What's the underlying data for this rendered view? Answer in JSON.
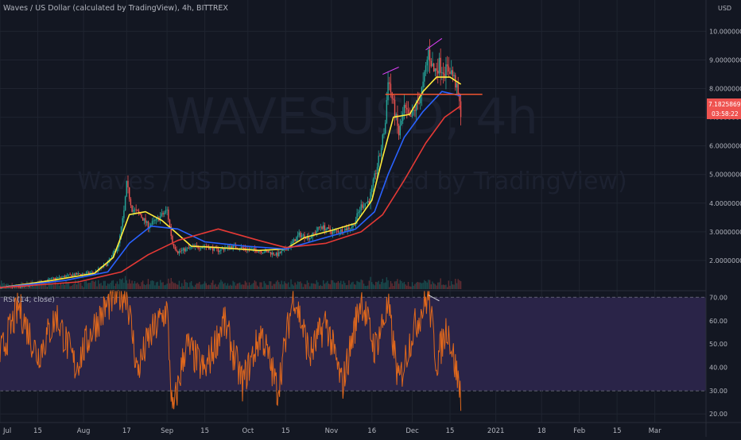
{
  "header": {
    "title": "Waves / US Dollar (calculated by TradingView), 4h, BITTREX",
    "currency": "USD"
  },
  "watermark": {
    "symbol": "WAVESUSD, 4h",
    "description": "Waves / US Dollar (calculated by TradingView)"
  },
  "colors": {
    "background": "#131722",
    "grid": "#1f2430",
    "axis_text": "#b2b5be",
    "candle_up": "#26a69a",
    "candle_down": "#ef5350",
    "ma_fast": "#ffeb3b",
    "ma_mid": "#2962ff",
    "ma_slow": "#e53935",
    "rsi_line": "#e0681c",
    "rsi_band": "#2a2448",
    "level_line": "#f0532f",
    "trend_line": "#e040fb"
  },
  "price_badge": {
    "value": "7.18258695",
    "countdown": "03:58:22"
  },
  "rsi_panel": {
    "label": "RSI (14, close)"
  },
  "chart_data": [
    {
      "type": "candlestick",
      "name": "price",
      "x_axis": {
        "tick_labels": [
          "Jul",
          "15",
          "Aug",
          "17",
          "Sep",
          "15",
          "Oct",
          "15",
          "Nov",
          "16",
          "Dec",
          "15",
          "2021",
          "18",
          "Feb",
          "15",
          "Mar"
        ],
        "range": [
          "2020-07-01",
          "2021-03-20"
        ]
      },
      "y_axis": {
        "tick_labels": [
          "10.00000000",
          "9.00000000",
          "8.00000000",
          "7.00000000",
          "6.00000000",
          "5.00000000",
          "4.00000000",
          "3.00000000",
          "2.00000000"
        ],
        "ticks": [
          10,
          9,
          8,
          7,
          6,
          5,
          4,
          3,
          2
        ],
        "range": [
          1.0,
          10.4
        ]
      },
      "close_path": [
        {
          "x": "2020-07-01",
          "y": 1.05
        },
        {
          "x": "2020-07-10",
          "y": 1.08
        },
        {
          "x": "2020-07-20",
          "y": 1.35
        },
        {
          "x": "2020-07-28",
          "y": 1.5
        },
        {
          "x": "2020-08-05",
          "y": 1.58
        },
        {
          "x": "2020-08-10",
          "y": 1.9
        },
        {
          "x": "2020-08-14",
          "y": 2.55
        },
        {
          "x": "2020-08-16",
          "y": 3.7
        },
        {
          "x": "2020-08-17",
          "y": 4.65
        },
        {
          "x": "2020-08-19",
          "y": 3.8
        },
        {
          "x": "2020-08-22",
          "y": 3.6
        },
        {
          "x": "2020-08-25",
          "y": 3.2
        },
        {
          "x": "2020-08-28",
          "y": 3.4
        },
        {
          "x": "2020-09-01",
          "y": 3.75
        },
        {
          "x": "2020-09-03",
          "y": 2.6
        },
        {
          "x": "2020-09-05",
          "y": 2.3
        },
        {
          "x": "2020-09-10",
          "y": 2.45
        },
        {
          "x": "2020-09-15",
          "y": 2.5
        },
        {
          "x": "2020-09-20",
          "y": 2.35
        },
        {
          "x": "2020-09-25",
          "y": 2.5
        },
        {
          "x": "2020-10-01",
          "y": 2.4
        },
        {
          "x": "2020-10-08",
          "y": 2.3
        },
        {
          "x": "2020-10-12",
          "y": 2.2
        },
        {
          "x": "2020-10-16",
          "y": 2.45
        },
        {
          "x": "2020-10-20",
          "y": 2.9
        },
        {
          "x": "2020-10-24",
          "y": 2.8
        },
        {
          "x": "2020-10-28",
          "y": 3.2
        },
        {
          "x": "2020-11-01",
          "y": 3.0
        },
        {
          "x": "2020-11-05",
          "y": 3.05
        },
        {
          "x": "2020-11-09",
          "y": 3.2
        },
        {
          "x": "2020-11-12",
          "y": 3.9
        },
        {
          "x": "2020-11-15",
          "y": 4.1
        },
        {
          "x": "2020-11-17",
          "y": 4.9
        },
        {
          "x": "2020-11-19",
          "y": 5.7
        },
        {
          "x": "2020-11-21",
          "y": 6.8
        },
        {
          "x": "2020-11-22",
          "y": 8.4
        },
        {
          "x": "2020-11-24",
          "y": 7.4
        },
        {
          "x": "2020-11-26",
          "y": 6.4
        },
        {
          "x": "2020-11-28",
          "y": 7.3
        },
        {
          "x": "2020-11-30",
          "y": 6.9
        },
        {
          "x": "2020-12-03",
          "y": 7.5
        },
        {
          "x": "2020-12-05",
          "y": 8.1
        },
        {
          "x": "2020-12-07",
          "y": 9.3
        },
        {
          "x": "2020-12-09",
          "y": 8.6
        },
        {
          "x": "2020-12-11",
          "y": 8.85
        },
        {
          "x": "2020-12-13",
          "y": 8.6
        },
        {
          "x": "2020-12-15",
          "y": 8.7
        },
        {
          "x": "2020-12-17",
          "y": 8.2
        },
        {
          "x": "2020-12-19",
          "y": 7.18
        }
      ],
      "moving_averages": [
        {
          "color_key": "ma_fast",
          "points": [
            {
              "x": "2020-07-01",
              "y": 1.05
            },
            {
              "x": "2020-07-20",
              "y": 1.3
            },
            {
              "x": "2020-08-05",
              "y": 1.55
            },
            {
              "x": "2020-08-12",
              "y": 2.1
            },
            {
              "x": "2020-08-18",
              "y": 3.6
            },
            {
              "x": "2020-08-24",
              "y": 3.7
            },
            {
              "x": "2020-08-30",
              "y": 3.4
            },
            {
              "x": "2020-09-04",
              "y": 3.0
            },
            {
              "x": "2020-09-10",
              "y": 2.5
            },
            {
              "x": "2020-09-20",
              "y": 2.45
            },
            {
              "x": "2020-10-05",
              "y": 2.35
            },
            {
              "x": "2020-10-15",
              "y": 2.4
            },
            {
              "x": "2020-10-22",
              "y": 2.8
            },
            {
              "x": "2020-11-01",
              "y": 3.05
            },
            {
              "x": "2020-11-10",
              "y": 3.3
            },
            {
              "x": "2020-11-16",
              "y": 4.1
            },
            {
              "x": "2020-11-20",
              "y": 5.6
            },
            {
              "x": "2020-11-24",
              "y": 7.0
            },
            {
              "x": "2020-11-30",
              "y": 7.1
            },
            {
              "x": "2020-12-05",
              "y": 7.9
            },
            {
              "x": "2020-12-10",
              "y": 8.4
            },
            {
              "x": "2020-12-15",
              "y": 8.4
            },
            {
              "x": "2020-12-19",
              "y": 8.15
            }
          ]
        },
        {
          "color_key": "ma_mid",
          "points": [
            {
              "x": "2020-07-01",
              "y": 1.05
            },
            {
              "x": "2020-07-25",
              "y": 1.3
            },
            {
              "x": "2020-08-10",
              "y": 1.6
            },
            {
              "x": "2020-08-18",
              "y": 2.6
            },
            {
              "x": "2020-08-26",
              "y": 3.2
            },
            {
              "x": "2020-09-05",
              "y": 3.1
            },
            {
              "x": "2020-09-15",
              "y": 2.65
            },
            {
              "x": "2020-09-30",
              "y": 2.5
            },
            {
              "x": "2020-10-15",
              "y": 2.4
            },
            {
              "x": "2020-10-28",
              "y": 2.75
            },
            {
              "x": "2020-11-10",
              "y": 3.1
            },
            {
              "x": "2020-11-17",
              "y": 3.7
            },
            {
              "x": "2020-11-22",
              "y": 5.0
            },
            {
              "x": "2020-11-28",
              "y": 6.3
            },
            {
              "x": "2020-12-05",
              "y": 7.2
            },
            {
              "x": "2020-12-12",
              "y": 7.9
            },
            {
              "x": "2020-12-19",
              "y": 7.75
            }
          ]
        },
        {
          "color_key": "ma_slow",
          "points": [
            {
              "x": "2020-07-01",
              "y": 1.05
            },
            {
              "x": "2020-07-30",
              "y": 1.25
            },
            {
              "x": "2020-08-15",
              "y": 1.6
            },
            {
              "x": "2020-08-25",
              "y": 2.2
            },
            {
              "x": "2020-09-05",
              "y": 2.7
            },
            {
              "x": "2020-09-20",
              "y": 3.1
            },
            {
              "x": "2020-10-05",
              "y": 2.7
            },
            {
              "x": "2020-10-15",
              "y": 2.45
            },
            {
              "x": "2020-10-30",
              "y": 2.6
            },
            {
              "x": "2020-11-12",
              "y": 3.0
            },
            {
              "x": "2020-11-20",
              "y": 3.6
            },
            {
              "x": "2020-11-28",
              "y": 4.8
            },
            {
              "x": "2020-12-06",
              "y": 6.1
            },
            {
              "x": "2020-12-13",
              "y": 7.0
            },
            {
              "x": "2020-12-19",
              "y": 7.4
            }
          ]
        }
      ],
      "horizontal_level": {
        "y": 7.8,
        "from": "2020-11-21",
        "to": "2020-12-27"
      },
      "trend_lines": [
        {
          "points": [
            {
              "x": "2020-11-20",
              "y": 8.5
            },
            {
              "x": "2020-11-26",
              "y": 8.75
            }
          ]
        },
        {
          "points": [
            {
              "x": "2020-12-06",
              "y": 9.35
            },
            {
              "x": "2020-12-12",
              "y": 9.75
            }
          ]
        }
      ]
    },
    {
      "type": "line",
      "name": "RSI",
      "y_axis": {
        "tick_labels": [
          "70.00",
          "60.00",
          "50.00",
          "40.00",
          "30.00",
          "20.00"
        ],
        "ticks": [
          70,
          60,
          50,
          40,
          30,
          20
        ],
        "range": [
          17,
          71.5
        ],
        "band": [
          30,
          70
        ]
      },
      "key_points": [
        {
          "x": "2020-07-01",
          "y": 45
        },
        {
          "x": "2020-07-08",
          "y": 66
        },
        {
          "x": "2020-07-15",
          "y": 45
        },
        {
          "x": "2020-07-22",
          "y": 62
        },
        {
          "x": "2020-07-29",
          "y": 40
        },
        {
          "x": "2020-08-05",
          "y": 58
        },
        {
          "x": "2020-08-12",
          "y": 70
        },
        {
          "x": "2020-08-17",
          "y": 72
        },
        {
          "x": "2020-08-21",
          "y": 38
        },
        {
          "x": "2020-08-25",
          "y": 52
        },
        {
          "x": "2020-09-01",
          "y": 65
        },
        {
          "x": "2020-09-03",
          "y": 19
        },
        {
          "x": "2020-09-08",
          "y": 50
        },
        {
          "x": "2020-09-15",
          "y": 38
        },
        {
          "x": "2020-09-22",
          "y": 60
        },
        {
          "x": "2020-09-29",
          "y": 33
        },
        {
          "x": "2020-10-06",
          "y": 55
        },
        {
          "x": "2020-10-12",
          "y": 30
        },
        {
          "x": "2020-10-18",
          "y": 72
        },
        {
          "x": "2020-10-24",
          "y": 45
        },
        {
          "x": "2020-10-30",
          "y": 60
        },
        {
          "x": "2020-11-05",
          "y": 32
        },
        {
          "x": "2020-11-12",
          "y": 70
        },
        {
          "x": "2020-11-17",
          "y": 48
        },
        {
          "x": "2020-11-22",
          "y": 66
        },
        {
          "x": "2020-11-26",
          "y": 33
        },
        {
          "x": "2020-12-01",
          "y": 55
        },
        {
          "x": "2020-12-07",
          "y": 71
        },
        {
          "x": "2020-12-10",
          "y": 42
        },
        {
          "x": "2020-12-14",
          "y": 58
        },
        {
          "x": "2020-12-17",
          "y": 40
        },
        {
          "x": "2020-12-19",
          "y": 29
        }
      ],
      "trend_line": {
        "points": [
          {
            "x": "2020-12-07",
            "y": 71
          },
          {
            "x": "2020-12-11",
            "y": 68.5
          }
        ]
      }
    }
  ]
}
